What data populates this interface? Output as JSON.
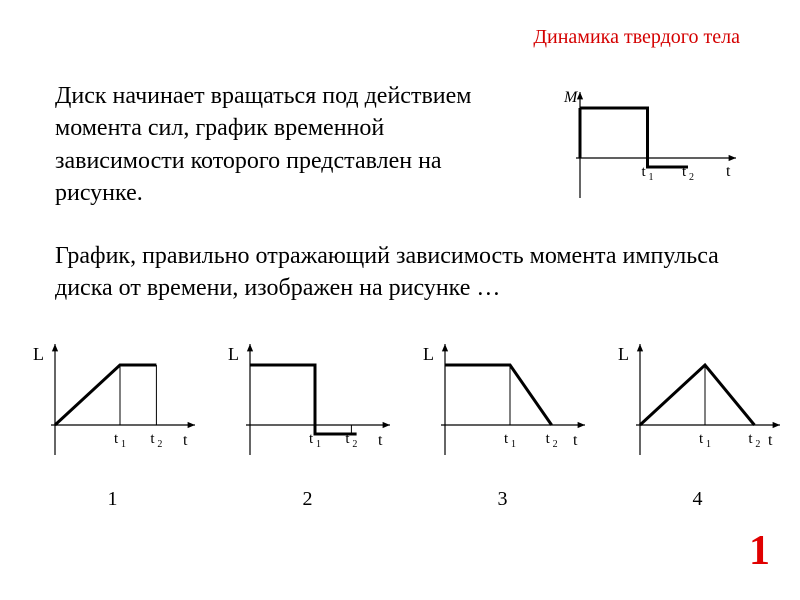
{
  "header": {
    "text": "Динамика  твердого  тела",
    "color": "#d40000",
    "fontsize": 20
  },
  "para1": {
    "text": "Диск начинает вращаться под действием момента сил, график временной зависимости которого представлен на рисунке.",
    "fontsize": 24
  },
  "para2": {
    "text": "График, правильно отражающий зависимость момента импульса диска от времени, изображен на рисунке …",
    "fontsize": 24
  },
  "answer": {
    "text": "1",
    "color": "#e00000",
    "fontsize": 42
  },
  "top_chart": {
    "type": "step-line",
    "ylabel": "M",
    "xlabel": "t",
    "xticks": [
      "t1",
      "t2"
    ],
    "xtick_positions": [
      0.45,
      0.72
    ],
    "level1_y": 1.0,
    "level2_y": -0.18,
    "axis_color": "#000000",
    "line_color": "#000000",
    "line_width": 3,
    "axis_width": 1.2,
    "label_fontsize": 16,
    "tick_fontsize": 15
  },
  "options": [
    {
      "num": "1",
      "ylabel": "L",
      "xlabel": "t",
      "xticks": [
        "t1",
        "t2"
      ],
      "points": [
        [
          0.0,
          0.0
        ],
        [
          0.5,
          1.0
        ],
        [
          0.78,
          1.0
        ]
      ],
      "close_to_axis": false,
      "line_color": "#000000",
      "line_width": 3,
      "axis_color": "#000000",
      "axis_width": 1.2,
      "label_fontsize": 18,
      "tick_fontsize": 15,
      "xtick_positions": [
        0.5,
        0.78
      ],
      "vtick_at": [
        0.5,
        0.78
      ]
    },
    {
      "num": "2",
      "ylabel": "L",
      "xlabel": "t",
      "xticks": [
        "t1",
        "t2"
      ],
      "points": [
        [
          0.0,
          1.0
        ],
        [
          0.5,
          1.0
        ],
        [
          0.5,
          -0.15
        ],
        [
          0.82,
          -0.15
        ]
      ],
      "close_to_axis": false,
      "line_color": "#000000",
      "line_width": 3,
      "axis_color": "#000000",
      "axis_width": 1.2,
      "label_fontsize": 18,
      "tick_fontsize": 15,
      "xtick_positions": [
        0.5,
        0.78
      ],
      "vtick_at": [
        0.5,
        0.78
      ]
    },
    {
      "num": "3",
      "ylabel": "L",
      "xlabel": "t",
      "xticks": [
        "t1",
        "t2"
      ],
      "points": [
        [
          0.0,
          1.0
        ],
        [
          0.5,
          1.0
        ],
        [
          0.82,
          0.0
        ]
      ],
      "close_to_axis": false,
      "line_color": "#000000",
      "line_width": 3,
      "axis_color": "#000000",
      "axis_width": 1.2,
      "label_fontsize": 18,
      "tick_fontsize": 15,
      "xtick_positions": [
        0.5,
        0.82
      ],
      "vtick_at": [
        0.5
      ]
    },
    {
      "num": "4",
      "ylabel": "L",
      "xlabel": "t",
      "xticks": [
        "t1",
        "t2"
      ],
      "points": [
        [
          0.0,
          0.0
        ],
        [
          0.5,
          1.0
        ],
        [
          0.88,
          0.0
        ]
      ],
      "close_to_axis": false,
      "line_color": "#000000",
      "line_width": 3,
      "axis_color": "#000000",
      "axis_width": 1.2,
      "label_fontsize": 18,
      "tick_fontsize": 15,
      "xtick_positions": [
        0.5,
        0.88
      ],
      "vtick_at": [
        0.5
      ]
    }
  ]
}
